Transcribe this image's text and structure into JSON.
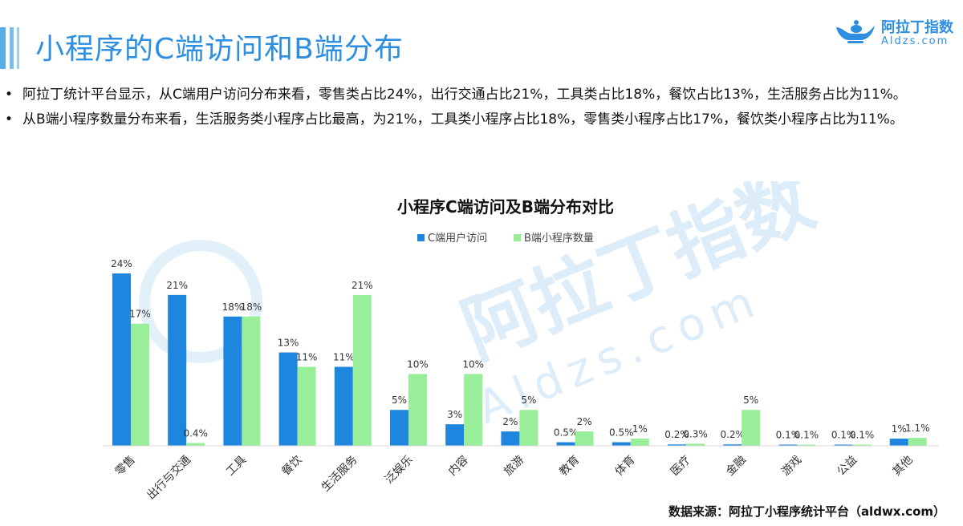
{
  "header": {
    "title": "小程序的C端访问和B端分布",
    "accent": "#2e8fe0"
  },
  "logo": {
    "name": "阿拉丁指数",
    "domain": "Aldzs.com",
    "icon": "genie-lamp-icon"
  },
  "bullets": [
    "阿拉丁统计平台显示，从C端用户访问分布来看，零售类占比24%，出行交通占比21%，工具类占比18%，餐饮占比13%，生活服务占比为11%。",
    "从B端小程序数量分布来看，生活服务类小程序占比最高，为21%，工具类小程序占比18%，零售类小程序占比17%，餐饮类小程序占比为11%。"
  ],
  "watermark": {
    "text": "阿拉丁指数",
    "sub": "Aldzs.com"
  },
  "chart_data": {
    "type": "bar",
    "title": "小程序C端访问及B端分布对比",
    "categories": [
      "零售",
      "出行与交通",
      "工具",
      "餐饮",
      "生活服务",
      "泛娱乐",
      "内容",
      "旅游",
      "教育",
      "体育",
      "医疗",
      "金融",
      "游戏",
      "公益",
      "其他"
    ],
    "series": [
      {
        "name": "C端用户访问",
        "color": "#1f86e0",
        "values": [
          24,
          21,
          18,
          13,
          11,
          5,
          3,
          2,
          0.5,
          0.5,
          0.2,
          0.2,
          0.1,
          0.1,
          1
        ],
        "labels": [
          "24%",
          "21%",
          "18%",
          "13%",
          "11%",
          "5%",
          "3%",
          "2%",
          "0.5%",
          "0.5%",
          "0.2%",
          "0.2%",
          "0.1%",
          "0.1%",
          "1%"
        ]
      },
      {
        "name": "B端小程序数量",
        "color": "#99ee99",
        "values": [
          17,
          0.4,
          18,
          11,
          21,
          10,
          10,
          5,
          2,
          1,
          0.3,
          5,
          0.1,
          0.1,
          1.1
        ],
        "labels": [
          "17%",
          "0.4%",
          "18%",
          "11%",
          "21%",
          "10%",
          "10%",
          "5%",
          "2%",
          "1%",
          "0.3%",
          "5%",
          "0.1%",
          "0.1%",
          "1.1%"
        ]
      }
    ],
    "ylim": [
      0,
      24
    ],
    "legend": "top-center",
    "grid": false
  },
  "source": "数据来源：阿拉丁小程序统计平台（aldwx.com）"
}
